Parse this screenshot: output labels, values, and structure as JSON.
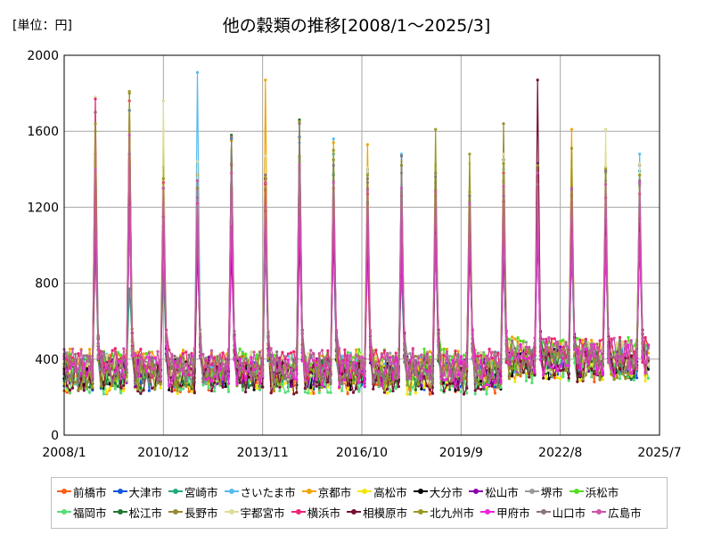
{
  "header": {
    "unit_label": "[単位：円]",
    "title": "他の穀類の推移[2008/1～2025/3]"
  },
  "chart_data": {
    "type": "line",
    "title": "他の穀類の推移[2008/1～2025/3]",
    "unit": "[単位：円]",
    "x_range": [
      "2008/1",
      "2025/7"
    ],
    "x_ticks": [
      "2008/1",
      "2010/12",
      "2013/11",
      "2016/10",
      "2019/9",
      "2022/8",
      "2025/7"
    ],
    "ylim": [
      0,
      2000
    ],
    "y_ticks": [
      "0",
      "400",
      "800",
      "1200",
      "1600",
      "2000"
    ],
    "grid": true,
    "legend_position": "bottom",
    "series": [
      {
        "name": "前橋市",
        "color": "#ff5b10",
        "peaks": [
          960,
          1120,
          830,
          1010,
          1200,
          1290,
          1240,
          1080,
          930,
          1050,
          1020,
          960,
          930,
          1290,
          1080,
          1000,
          1060
        ]
      },
      {
        "name": "大津市",
        "color": "#1155dd",
        "peaks": [
          1480,
          1710,
          1180,
          1170,
          1560,
          1110,
          1570,
          1050,
          1330,
          1470,
          1380,
          1080,
          1120,
          1430,
          1270,
          1340,
          1320
        ]
      },
      {
        "name": "宮崎市",
        "color": "#22aa77",
        "peaks": [
          1010,
          770,
          880,
          950,
          1120,
          980,
          1300,
          1480,
          1110,
          840,
          1000,
          1230,
          1340,
          1120,
          980,
          960,
          1390
        ]
      },
      {
        "name": "さいたま市",
        "color": "#55bbee",
        "peaks": [
          1350,
          1220,
          1290,
          1910,
          1300,
          1260,
          1540,
          1560,
          1400,
          1480,
          1050,
          1210,
          1400,
          1330,
          1260,
          1390,
          1480
        ]
      },
      {
        "name": "京都市",
        "color": "#f0a500",
        "peaks": [
          1430,
          1440,
          1390,
          1050,
          1550,
          1870,
          1460,
          1540,
          1530,
          1190,
          1200,
          1130,
          1210,
          1320,
          1610,
          1080,
          1370
        ]
      },
      {
        "name": "高松市",
        "color": "#f4e600",
        "peaks": [
          1280,
          1330,
          1200,
          1130,
          1380,
          1310,
          1440,
          1290,
          1160,
          1210,
          1060,
          1170,
          1120,
          1170,
          1210,
          1230,
          1170
        ]
      },
      {
        "name": "大分市",
        "color": "#000000",
        "peaks": [
          1170,
          1260,
          1140,
          1080,
          1190,
          1350,
          1250,
          1200,
          1190,
          1040,
          1010,
          1050,
          1020,
          1070,
          1000,
          1010,
          1030
        ]
      },
      {
        "name": "松山市",
        "color": "#8a00aa",
        "peaks": [
          1120,
          1150,
          1030,
          1010,
          1080,
          1130,
          1140,
          1100,
          1040,
          1010,
          1010,
          1030,
          1020,
          1040,
          1010,
          1020,
          1010
        ]
      },
      {
        "name": "堺市",
        "color": "#999999",
        "peaks": [
          1240,
          1480,
          1320,
          1290,
          1380,
          1370,
          1410,
          1340,
          1380,
          1380,
          1330,
          1260,
          1330,
          1350,
          1300,
          1390,
          1420
        ]
      },
      {
        "name": "浜松市",
        "color": "#55dd22",
        "peaks": [
          1600,
          1420,
          1060,
          1090,
          1310,
          1200,
          1560,
          1450,
          1230,
          1120,
          1130,
          1110,
          1180,
          1180,
          1150,
          1110,
          1130
        ]
      },
      {
        "name": "福岡市",
        "color": "#55dd77",
        "peaks": [
          1180,
          1140,
          1020,
          1060,
          1130,
          1030,
          1120,
          1380,
          1190,
          1020,
          1000,
          1090,
          1060,
          1110,
          1040,
          1030,
          1060
        ]
      },
      {
        "name": "松江市",
        "color": "#227733",
        "peaks": [
          1700,
          1370,
          1240,
          1200,
          1580,
          1320,
          1660,
          1370,
          1220,
          1170,
          1190,
          1160,
          1450,
          1290,
          1260,
          1380,
          1200
        ]
      },
      {
        "name": "長野市",
        "color": "#998833",
        "peaks": [
          1390,
          1800,
          1410,
          1370,
          1430,
          1300,
          1470,
          1450,
          1300,
          1280,
          1290,
          1280,
          1640,
          1340,
          1300,
          1410,
          1310
        ]
      },
      {
        "name": "宇都宮市",
        "color": "#dddd99",
        "peaks": [
          1780,
          1540,
          1760,
          1440,
          1500,
          1470,
          1560,
          1490,
          1410,
          1440,
          1420,
          1430,
          1480,
          1380,
          1440,
          1610,
          1430
        ]
      },
      {
        "name": "横浜市",
        "color": "#ee2277",
        "peaks": [
          1770,
          1760,
          1330,
          1220,
          1420,
          1320,
          1400,
          1300,
          1270,
          1260,
          1260,
          1200,
          1380,
          1280,
          1220,
          1250,
          1270
        ]
      },
      {
        "name": "相模原市",
        "color": "#771133",
        "peaks": [
          1200,
          1350,
          1150,
          1050,
          960,
          1180,
          1030,
          1070,
          1110,
          1060,
          1060,
          1050,
          1230,
          1870,
          1150,
          1130,
          1140
        ]
      },
      {
        "name": "北九州市",
        "color": "#999922",
        "peaks": [
          1640,
          1810,
          1350,
          1300,
          1570,
          1290,
          1650,
          1500,
          1370,
          1420,
          1610,
          1480,
          1430,
          1420,
          1510,
          1400,
          1370
        ]
      },
      {
        "name": "甲府市",
        "color": "#ee22dd",
        "peaks": [
          1150,
          1200,
          1100,
          1050,
          1100,
          1200,
          1150,
          1110,
          1080,
          1060,
          1050,
          1040,
          1090,
          1110,
          1060,
          1040,
          1060
        ]
      },
      {
        "name": "山口市",
        "color": "#887777",
        "peaks": [
          1300,
          1480,
          1300,
          1250,
          1570,
          1370,
          1640,
          1420,
          1350,
          1470,
          1360,
          1260,
          1260,
          1320,
          1290,
          1390,
          1340
        ]
      },
      {
        "name": "広島市",
        "color": "#cc55aa",
        "peaks": [
          1400,
          1580,
          1300,
          1340,
          1380,
          1330,
          1420,
          1330,
          1290,
          1300,
          1280,
          1220,
          1310,
          1380,
          1300,
          1320,
          1330
        ]
      }
    ]
  }
}
